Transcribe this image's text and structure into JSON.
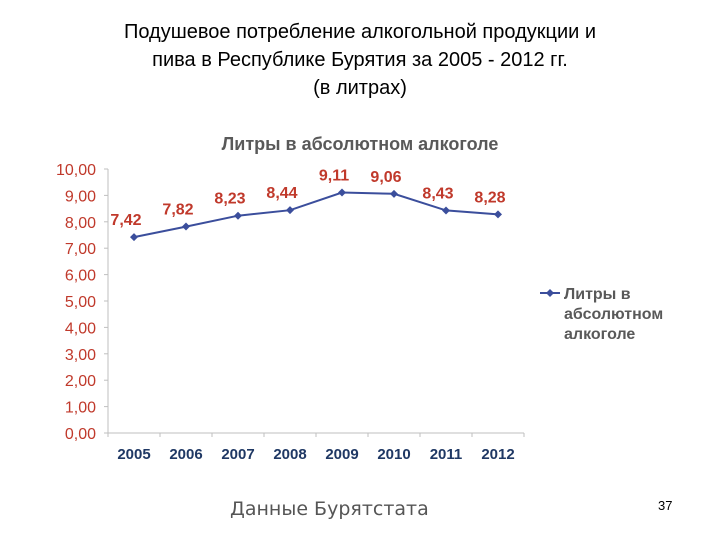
{
  "slide": {
    "title_lines": [
      "Подушевое потребление алкогольной продукции и",
      "пива в Республике Бурятия за 2005 - 2012 гг.",
      "(в литрах)"
    ],
    "source": "Данные Бурятстата",
    "page_number": "37"
  },
  "colors": {
    "axis_tick_labels": "#c0392b",
    "x_labels": "#1f3864",
    "series_line": "#3b4e9c",
    "point_labels": "#c0392b",
    "axis": "#bfbfbf"
  },
  "chart_data": {
    "type": "line",
    "title": "Литры в абсолютном алкоголе",
    "categories": [
      "2005",
      "2006",
      "2007",
      "2008",
      "2009",
      "2010",
      "2011",
      "2012"
    ],
    "series": [
      {
        "name": "Литры в абсолютном алкоголе",
        "values": [
          7.42,
          7.82,
          8.23,
          8.44,
          9.11,
          9.06,
          8.43,
          8.28
        ],
        "labels": [
          "7,42",
          "7,82",
          "8,23",
          "8,44",
          "9,11",
          "9,06",
          "8,43",
          "8,28"
        ]
      }
    ],
    "ylim": [
      0,
      10
    ],
    "yticks": [
      "0,00",
      "1,00",
      "2,00",
      "3,00",
      "4,00",
      "5,00",
      "6,00",
      "7,00",
      "8,00",
      "9,00",
      "10,00"
    ],
    "grid": false,
    "legend_position": "right",
    "legend_lines": [
      "Литры в",
      "абсолютном",
      "алкоголе"
    ]
  }
}
